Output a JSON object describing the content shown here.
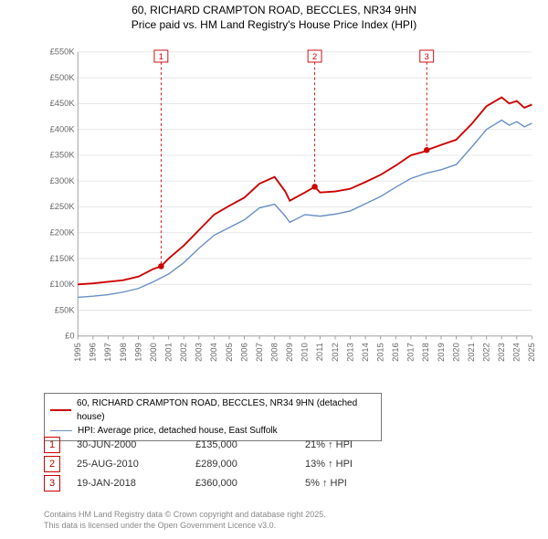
{
  "title": {
    "line1": "60, RICHARD CRAMPTON ROAD, BECCLES, NR34 9HN",
    "line2": "Price paid vs. HM Land Registry's House Price Index (HPI)"
  },
  "chart": {
    "type": "line",
    "background_color": "#ffffff",
    "grid_color": "#e5e5e5",
    "axis_color": "#999999",
    "font_family": "Arial",
    "title_fontsize": 12,
    "axis_fontsize": 10,
    "x": {
      "min": 1995,
      "max": 2025,
      "ticks": [
        1995,
        1996,
        1997,
        1998,
        1999,
        2000,
        2001,
        2002,
        2003,
        2004,
        2005,
        2006,
        2007,
        2008,
        2009,
        2010,
        2011,
        2012,
        2013,
        2014,
        2015,
        2016,
        2017,
        2018,
        2019,
        2020,
        2021,
        2022,
        2023,
        2024,
        2025
      ]
    },
    "y": {
      "min": 0,
      "max": 550000,
      "tick_step": 50000,
      "tick_labels": [
        "£0",
        "£50K",
        "£100K",
        "£150K",
        "£200K",
        "£250K",
        "£300K",
        "£350K",
        "£400K",
        "£450K",
        "£500K",
        "£550K"
      ]
    },
    "series": [
      {
        "id": "property",
        "label": "60, RICHARD CRAMPTON ROAD, BECCLES, NR34 9HN (detached house)",
        "color": "#cc0000",
        "line_width": 2,
        "points": [
          [
            1995,
            100000
          ],
          [
            1996,
            102000
          ],
          [
            1997,
            105000
          ],
          [
            1998,
            108000
          ],
          [
            1999,
            115000
          ],
          [
            2000,
            130000
          ],
          [
            2000.5,
            135000
          ],
          [
            2001,
            150000
          ],
          [
            2002,
            175000
          ],
          [
            2003,
            205000
          ],
          [
            2004,
            235000
          ],
          [
            2005,
            252000
          ],
          [
            2006,
            268000
          ],
          [
            2007,
            295000
          ],
          [
            2008,
            308000
          ],
          [
            2008.7,
            280000
          ],
          [
            2009,
            262000
          ],
          [
            2010,
            278000
          ],
          [
            2010.65,
            289000
          ],
          [
            2011,
            278000
          ],
          [
            2012,
            280000
          ],
          [
            2013,
            285000
          ],
          [
            2014,
            298000
          ],
          [
            2015,
            312000
          ],
          [
            2016,
            330000
          ],
          [
            2017,
            350000
          ],
          [
            2018,
            358000
          ],
          [
            2018.05,
            360000
          ],
          [
            2019,
            370000
          ],
          [
            2020,
            380000
          ],
          [
            2021,
            410000
          ],
          [
            2022,
            445000
          ],
          [
            2023,
            462000
          ],
          [
            2023.5,
            450000
          ],
          [
            2024,
            455000
          ],
          [
            2024.5,
            442000
          ],
          [
            2025,
            448000
          ]
        ]
      },
      {
        "id": "hpi",
        "label": "HPI: Average price, detached house, East Suffolk",
        "color": "#6a8fc4",
        "line_width": 1.5,
        "points": [
          [
            1995,
            75000
          ],
          [
            1996,
            77000
          ],
          [
            1997,
            80000
          ],
          [
            1998,
            85000
          ],
          [
            1999,
            92000
          ],
          [
            2000,
            105000
          ],
          [
            2001,
            120000
          ],
          [
            2002,
            142000
          ],
          [
            2003,
            170000
          ],
          [
            2004,
            195000
          ],
          [
            2005,
            210000
          ],
          [
            2006,
            225000
          ],
          [
            2007,
            248000
          ],
          [
            2008,
            255000
          ],
          [
            2008.7,
            232000
          ],
          [
            2009,
            220000
          ],
          [
            2010,
            235000
          ],
          [
            2011,
            232000
          ],
          [
            2012,
            236000
          ],
          [
            2013,
            242000
          ],
          [
            2014,
            256000
          ],
          [
            2015,
            270000
          ],
          [
            2016,
            288000
          ],
          [
            2017,
            305000
          ],
          [
            2018,
            315000
          ],
          [
            2019,
            322000
          ],
          [
            2020,
            332000
          ],
          [
            2021,
            365000
          ],
          [
            2022,
            400000
          ],
          [
            2023,
            418000
          ],
          [
            2023.5,
            408000
          ],
          [
            2024,
            415000
          ],
          [
            2024.5,
            405000
          ],
          [
            2025,
            412000
          ]
        ]
      }
    ],
    "markers": [
      {
        "n": "1",
        "x": 2000.5,
        "y": 135000
      },
      {
        "n": "2",
        "x": 2010.65,
        "y": 289000
      },
      {
        "n": "3",
        "x": 2018.05,
        "y": 360000
      }
    ],
    "marker_style": {
      "dot_color": "#cc0000",
      "dot_radius": 3.5,
      "line_color": "#cc0000",
      "line_dash": "3,3",
      "box_border": "#cc0000",
      "box_fill": "#ffffff",
      "box_text": "#cc0000"
    }
  },
  "legend": {
    "rows": [
      {
        "color": "#cc0000",
        "label": "60, RICHARD CRAMPTON ROAD, BECCLES, NR34 9HN (detached house)",
        "width": 2
      },
      {
        "color": "#6a8fc4",
        "label": "HPI: Average price, detached house, East Suffolk",
        "width": 1.5
      }
    ]
  },
  "marker_table": {
    "rows": [
      {
        "n": "1",
        "date": "30-JUN-2000",
        "price": "£135,000",
        "delta": "21% ↑ HPI"
      },
      {
        "n": "2",
        "date": "25-AUG-2010",
        "price": "£289,000",
        "delta": "13% ↑ HPI"
      },
      {
        "n": "3",
        "date": "19-JAN-2018",
        "price": "£360,000",
        "delta": "5% ↑ HPI"
      }
    ]
  },
  "credits": {
    "line1": "Contains HM Land Registry data © Crown copyright and database right 2025.",
    "line2": "This data is licensed under the Open Government Licence v3.0."
  }
}
